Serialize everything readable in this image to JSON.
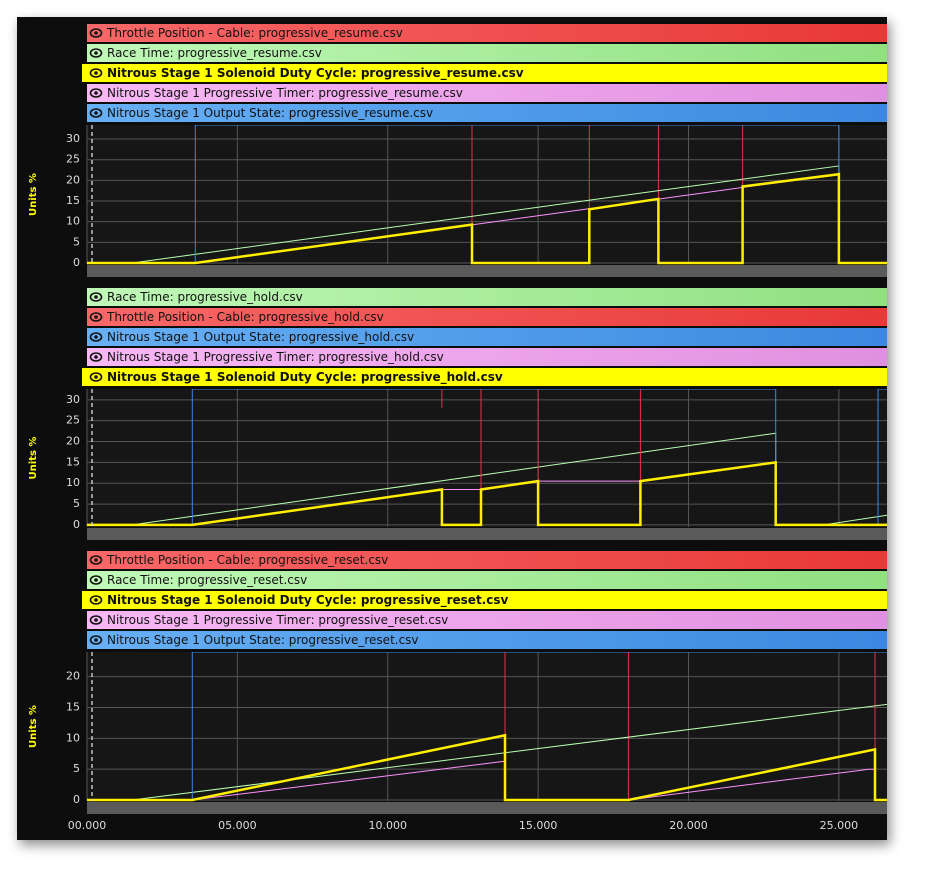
{
  "chart_data": [
    {
      "type": "line",
      "yaxis_label": "Units %",
      "ylim": [
        -0.25,
        33.4
      ],
      "yticks": [
        0,
        5,
        10,
        15,
        20,
        25,
        30
      ],
      "xlim": [
        0,
        26.6
      ],
      "grid": true,
      "series": [
        {
          "name": "Throttle Position - Cable: progressive_resume.csv",
          "color": "#e8304a",
          "legend_fill": [
            "#f86868",
            "#e83838"
          ],
          "x": [
            12.8,
            12.8,
            12.8,
            16.7,
            16.7,
            16.7,
            19,
            19,
            19,
            21.8,
            21.8
          ],
          "values": [
            33.4,
            9.3,
            null,
            33.4,
            13,
            null,
            33.4,
            15.5,
            null,
            33.4,
            18.5
          ]
        },
        {
          "name": "Race Time: progressive_resume.csv",
          "color": "#b8ffb0",
          "legend_fill": [
            "#c0f8b8",
            "#90e080"
          ],
          "x": [
            0,
            1.5,
            25,
            25,
            26.6
          ],
          "values": [
            0,
            0,
            23.5,
            0,
            0
          ]
        },
        {
          "name": "Nitrous Stage 1 Solenoid Duty Cycle: progressive_resume.csv",
          "color": "#ffee00",
          "bold": true,
          "legend_fill": [
            "#ffff00",
            "#ffff00"
          ],
          "x": [
            0,
            3.6,
            12.8,
            12.8,
            16.7,
            16.7,
            19,
            19,
            21.8,
            21.8,
            25,
            25,
            26.6
          ],
          "values": [
            0,
            0,
            9.3,
            0,
            0,
            13,
            15.5,
            0,
            0,
            18.5,
            21.5,
            0,
            0
          ]
        },
        {
          "name": "Nitrous Stage 1 Progressive Timer: progressive_resume.csv",
          "color": "#ff90ff",
          "legend_fill": [
            "#f8b8f4",
            "#e090e0"
          ],
          "x": [
            0,
            3.6,
            25,
            25,
            26.6
          ],
          "values": [
            0,
            0,
            21.5,
            0,
            0
          ]
        },
        {
          "name": "Nitrous Stage 1 Output State: progressive_resume.csv",
          "color": "#3a88e8",
          "legend_fill": [
            "#68b0f4",
            "#3a88e0"
          ],
          "x": [
            0,
            3.6,
            3.6,
            25,
            25,
            26.6
          ],
          "values": [
            0,
            0,
            33.4,
            33.4,
            0,
            0
          ]
        }
      ]
    },
    {
      "type": "line",
      "yaxis_label": "Units %",
      "ylim": [
        -0.5,
        32.6
      ],
      "yticks": [
        0,
        5,
        10,
        15,
        20,
        25,
        30
      ],
      "xlim": [
        0,
        26.6
      ],
      "grid": true,
      "series": [
        {
          "name": "Race Time: progressive_hold.csv",
          "color": "#b8ffb0",
          "legend_fill": [
            "#c0f8b8",
            "#90e080"
          ],
          "x": [
            0,
            1.5,
            22.9,
            22.9,
            24.5,
            26.6
          ],
          "values": [
            0,
            0,
            22,
            0,
            0,
            2.3
          ]
        },
        {
          "name": "Throttle Position - Cable: progressive_hold.csv",
          "color": "#e8304a",
          "legend_fill": [
            "#f86868",
            "#e83838"
          ],
          "x": [
            11.8,
            11.8,
            11.8,
            13.1,
            13.1,
            13.1,
            15,
            15,
            15,
            18.4,
            18.4
          ],
          "values": [
            32.6,
            28,
            null,
            32.6,
            8.5,
            null,
            32.6,
            10.5,
            null,
            32.6,
            10.5
          ]
        },
        {
          "name": "Nitrous Stage 1 Output State: progressive_hold.csv",
          "color": "#3a88e8",
          "legend_fill": [
            "#68b0f4",
            "#3a88e0"
          ],
          "x": [
            0,
            3.5,
            3.5,
            22.9,
            22.9,
            26.3,
            26.3,
            26.6
          ],
          "values": [
            0,
            0,
            32.6,
            32.6,
            0,
            0,
            32.6,
            32.6
          ]
        },
        {
          "name": "Nitrous Stage 1 Progressive Timer: progressive_hold.csv",
          "color": "#ff90ff",
          "legend_fill": [
            "#f8b8f4",
            "#e090e0"
          ],
          "x": [
            0,
            3.5,
            11.8,
            13.1,
            15,
            18.4,
            22.9,
            22.9,
            26.6
          ],
          "values": [
            0,
            0,
            8.5,
            8.5,
            10.5,
            10.5,
            15,
            0,
            0
          ]
        },
        {
          "name": "Nitrous Stage 1 Solenoid Duty Cycle: progressive_hold.csv",
          "color": "#ffee00",
          "bold": true,
          "legend_fill": [
            "#ffff00",
            "#ffff00"
          ],
          "x": [
            0,
            3.5,
            11.8,
            11.8,
            13.1,
            13.1,
            15,
            15,
            18.4,
            18.4,
            22.9,
            22.9,
            26.6
          ],
          "values": [
            0,
            0,
            8.5,
            0,
            0,
            8.5,
            10.5,
            0,
            0,
            10.5,
            15,
            0,
            0
          ]
        }
      ]
    },
    {
      "type": "line",
      "yaxis_label": "Units %",
      "ylim": [
        -0.16,
        24
      ],
      "yticks": [
        0,
        5,
        10,
        15,
        20
      ],
      "xlim": [
        0,
        26.6
      ],
      "grid": true,
      "xticks": [
        {
          "value": 0,
          "label": "00.000"
        },
        {
          "value": 5,
          "label": "05.000"
        },
        {
          "value": 10,
          "label": "10.000"
        },
        {
          "value": 15,
          "label": "15.000"
        },
        {
          "value": 20,
          "label": "20.000"
        },
        {
          "value": 25,
          "label": "25.000"
        }
      ],
      "series": [
        {
          "name": "Throttle Position - Cable: progressive_reset.csv",
          "color": "#e8304a",
          "legend_fill": [
            "#f86868",
            "#e83838"
          ],
          "x": [
            13.9,
            13.9,
            13.9,
            18,
            18,
            18,
            26.2,
            26.2
          ],
          "values": [
            24,
            0,
            null,
            24,
            0,
            null,
            24,
            0
          ]
        },
        {
          "name": "Race Time: progressive_reset.csv",
          "color": "#b8ffb0",
          "legend_fill": [
            "#c0f8b8",
            "#90e080"
          ],
          "x": [
            0,
            1.5,
            26.6
          ],
          "values": [
            0,
            0,
            15.5
          ]
        },
        {
          "name": "Nitrous Stage 1 Solenoid Duty Cycle: progressive_reset.csv",
          "color": "#ffee00",
          "bold": true,
          "legend_fill": [
            "#ffff00",
            "#ffff00"
          ],
          "x": [
            0,
            3.5,
            13.9,
            13.9,
            18,
            26.2,
            26.2,
            26.6
          ],
          "values": [
            0,
            0,
            10.5,
            0,
            0,
            8.2,
            0,
            0
          ]
        },
        {
          "name": "Nitrous Stage 1 Progressive Timer: progressive_reset.csv",
          "color": "#ff90ff",
          "legend_fill": [
            "#f8b8f4",
            "#e090e0"
          ],
          "x": [
            0,
            3.5,
            13.9,
            13.9,
            18,
            26,
            26.2,
            26.2
          ],
          "values": [
            0,
            0,
            6.3,
            0,
            0,
            5,
            5,
            0
          ]
        },
        {
          "name": "Nitrous Stage 1 Output State: progressive_reset.csv",
          "color": "#3a88e8",
          "legend_fill": [
            "#68b0f4",
            "#3a88e0"
          ],
          "x": [
            0,
            3.5,
            3.5,
            26.6
          ],
          "values": [
            0,
            0,
            24,
            24
          ]
        }
      ]
    }
  ]
}
